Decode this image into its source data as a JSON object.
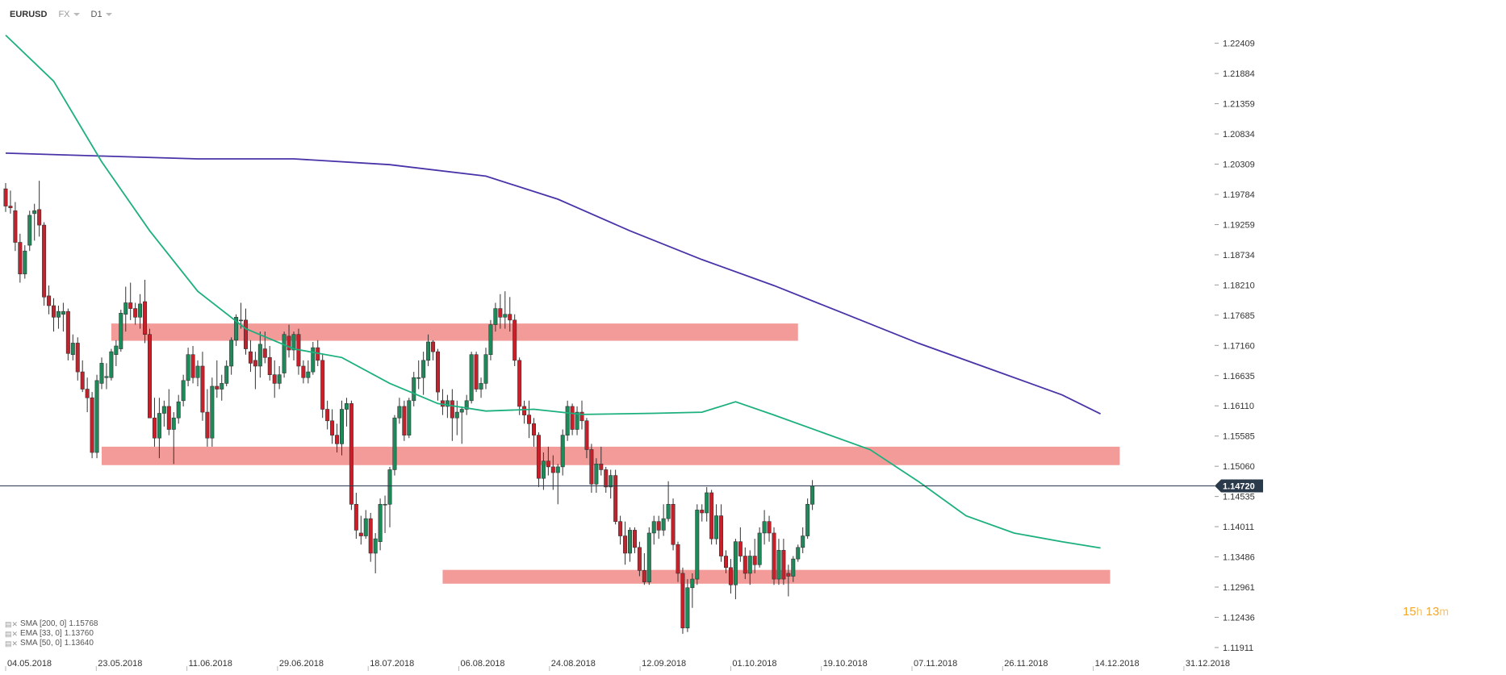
{
  "header": {
    "symbol": "EURUSD",
    "market": "FX",
    "timeframe": "D1"
  },
  "chart_data": {
    "type": "candlestick",
    "ylim": [
      1.117,
      1.2274
    ],
    "y_ticks": [
      "1.22409",
      "1.21884",
      "1.21359",
      "1.20834",
      "1.20309",
      "1.19784",
      "1.19259",
      "1.18734",
      "1.18210",
      "1.17685",
      "1.17160",
      "1.16635",
      "1.16110",
      "1.15585",
      "1.15060",
      "1.14535",
      "1.14011",
      "1.13486",
      "1.12961",
      "1.12436",
      "1.11911"
    ],
    "x_ticks": [
      "04.05.2018",
      "23.05.2018",
      "11.06.2018",
      "29.06.2018",
      "18.07.2018",
      "06.08.2018",
      "24.08.2018",
      "12.09.2018",
      "01.10.2018",
      "19.10.2018",
      "07.11.2018",
      "26.11.2018",
      "14.12.2018",
      "31.12.2018"
    ],
    "current_price": "1.14720",
    "colors": {
      "up": "#1e8a5a",
      "down": "#c8202a",
      "sma200": "#4a33a8",
      "sma50": "#1db07f",
      "zone": "#f08a86",
      "badge": "#2b3a4a"
    },
    "zones": [
      {
        "from": 22,
        "to": 165,
        "low": 1.1724,
        "high": 1.1754
      },
      {
        "from": 20,
        "to": 232,
        "low": 1.1508,
        "high": 1.154
      },
      {
        "from": 91,
        "to": 230,
        "low": 1.1302,
        "high": 1.1326
      }
    ],
    "candles": [
      [
        1.1988,
        1.1998,
        1.1948,
        1.1958
      ],
      [
        1.1958,
        1.1985,
        1.1945,
        1.1955
      ],
      [
        1.195,
        1.1965,
        1.188,
        1.1895
      ],
      [
        1.1895,
        1.191,
        1.1825,
        1.184
      ],
      [
        1.184,
        1.189,
        1.1832,
        1.188
      ],
      [
        1.189,
        1.195,
        1.188,
        1.1942
      ],
      [
        1.1945,
        1.1962,
        1.1898,
        1.195
      ],
      [
        1.1952,
        1.2002,
        1.1905,
        1.1925
      ],
      [
        1.1925,
        1.193,
        1.1785,
        1.18
      ],
      [
        1.1802,
        1.182,
        1.177,
        1.1785
      ],
      [
        1.1785,
        1.1798,
        1.174,
        1.1765
      ],
      [
        1.1765,
        1.1785,
        1.1745,
        1.1775
      ],
      [
        1.177,
        1.179,
        1.174,
        1.1775
      ],
      [
        1.1775,
        1.178,
        1.169,
        1.1702
      ],
      [
        1.17,
        1.1735,
        1.169,
        1.172
      ],
      [
        1.172,
        1.173,
        1.1655,
        1.167
      ],
      [
        1.167,
        1.169,
        1.1635,
        1.164
      ],
      [
        1.164,
        1.166,
        1.16,
        1.1625
      ],
      [
        1.1625,
        1.1635,
        1.152,
        1.153
      ],
      [
        1.153,
        1.1665,
        1.152,
        1.1655
      ],
      [
        1.165,
        1.1695,
        1.164,
        1.1685
      ],
      [
        1.166,
        1.1685,
        1.164,
        1.1662
      ],
      [
        1.166,
        1.171,
        1.1655,
        1.1705
      ],
      [
        1.17,
        1.1725,
        1.168,
        1.1715
      ],
      [
        1.171,
        1.1778,
        1.1705,
        1.1772
      ],
      [
        1.177,
        1.1818,
        1.174,
        1.179
      ],
      [
        1.179,
        1.1825,
        1.176,
        1.178
      ],
      [
        1.178,
        1.179,
        1.1752,
        1.1765
      ],
      [
        1.1765,
        1.1805,
        1.1745,
        1.1788
      ],
      [
        1.1792,
        1.183,
        1.172,
        1.1735
      ],
      [
        1.1735,
        1.1745,
        1.159,
        1.159
      ],
      [
        1.159,
        1.1625,
        1.154,
        1.1555
      ],
      [
        1.1555,
        1.1625,
        1.152,
        1.1598
      ],
      [
        1.1598,
        1.162,
        1.1575,
        1.161
      ],
      [
        1.161,
        1.164,
        1.156,
        1.157
      ],
      [
        1.157,
        1.16,
        1.151,
        1.159
      ],
      [
        1.159,
        1.163,
        1.158,
        1.1618
      ],
      [
        1.162,
        1.1665,
        1.161,
        1.1655
      ],
      [
        1.1655,
        1.1712,
        1.1645,
        1.17
      ],
      [
        1.17,
        1.1715,
        1.165,
        1.166
      ],
      [
        1.166,
        1.169,
        1.1645,
        1.168
      ],
      [
        1.168,
        1.1705,
        1.1585,
        1.16
      ],
      [
        1.16,
        1.164,
        1.154,
        1.1555
      ],
      [
        1.1555,
        1.166,
        1.154,
        1.1645
      ],
      [
        1.1645,
        1.169,
        1.1625,
        1.164
      ],
      [
        1.164,
        1.1665,
        1.162,
        1.165
      ],
      [
        1.165,
        1.169,
        1.1645,
        1.168
      ],
      [
        1.168,
        1.173,
        1.1665,
        1.1725
      ],
      [
        1.1725,
        1.177,
        1.1715,
        1.1765
      ],
      [
        1.176,
        1.179,
        1.1745,
        1.176
      ],
      [
        1.176,
        1.178,
        1.17,
        1.171
      ],
      [
        1.1705,
        1.1725,
        1.167,
        1.1685
      ],
      [
        1.169,
        1.1705,
        1.164,
        1.168
      ],
      [
        1.168,
        1.174,
        1.166,
        1.1718
      ],
      [
        1.171,
        1.174,
        1.1685,
        1.1695
      ],
      [
        1.1695,
        1.1715,
        1.1655,
        1.1665
      ],
      [
        1.1665,
        1.169,
        1.1625,
        1.165
      ],
      [
        1.165,
        1.168,
        1.164,
        1.1665
      ],
      [
        1.1668,
        1.174,
        1.166,
        1.1735
      ],
      [
        1.1732,
        1.1752,
        1.1695,
        1.1708
      ],
      [
        1.1708,
        1.174,
        1.169,
        1.1735
      ],
      [
        1.1735,
        1.1745,
        1.1665,
        1.168
      ],
      [
        1.168,
        1.169,
        1.165,
        1.166
      ],
      [
        1.166,
        1.169,
        1.165,
        1.167
      ],
      [
        1.167,
        1.1722,
        1.1665,
        1.1712
      ],
      [
        1.1712,
        1.1725,
        1.168,
        1.169
      ],
      [
        1.169,
        1.17,
        1.159,
        1.1605
      ],
      [
        1.1605,
        1.162,
        1.157,
        1.1585
      ],
      [
        1.1585,
        1.1605,
        1.1545,
        1.156
      ],
      [
        1.156,
        1.158,
        1.153,
        1.1545
      ],
      [
        1.1545,
        1.162,
        1.1525,
        1.1605
      ],
      [
        1.1605,
        1.1625,
        1.1575,
        1.1615
      ],
      [
        1.1615,
        1.162,
        1.143,
        1.144
      ],
      [
        1.144,
        1.146,
        1.138,
        1.1395
      ],
      [
        1.139,
        1.142,
        1.137,
        1.1385
      ],
      [
        1.1385,
        1.143,
        1.138,
        1.1415
      ],
      [
        1.1415,
        1.1425,
        1.134,
        1.1355
      ],
      [
        1.1355,
        1.139,
        1.132,
        1.138
      ],
      [
        1.1375,
        1.145,
        1.136,
        1.144
      ],
      [
        1.144,
        1.1455,
        1.139,
        1.144
      ],
      [
        1.144,
        1.1505,
        1.14,
        1.15
      ],
      [
        1.15,
        1.1595,
        1.149,
        1.159
      ],
      [
        1.159,
        1.1625,
        1.158,
        1.161
      ],
      [
        1.161,
        1.162,
        1.155,
        1.156
      ],
      [
        1.156,
        1.1625,
        1.1555,
        1.162
      ],
      [
        1.162,
        1.167,
        1.161,
        1.166
      ],
      [
        1.166,
        1.169,
        1.164,
        1.166
      ],
      [
        1.166,
        1.1705,
        1.163,
        1.169
      ],
      [
        1.169,
        1.1735,
        1.168,
        1.1722
      ],
      [
        1.1722,
        1.1725,
        1.169,
        1.1705
      ],
      [
        1.1705,
        1.171,
        1.162,
        1.1635
      ],
      [
        1.162,
        1.164,
        1.1595,
        1.161
      ],
      [
        1.161,
        1.163,
        1.159,
        1.162
      ],
      [
        1.162,
        1.164,
        1.155,
        1.159
      ],
      [
        1.159,
        1.162,
        1.156,
        1.16
      ],
      [
        1.16,
        1.161,
        1.1545,
        1.1605
      ],
      [
        1.1605,
        1.163,
        1.1595,
        1.162
      ],
      [
        1.162,
        1.1705,
        1.1615,
        1.17
      ],
      [
        1.17,
        1.1705,
        1.1635,
        1.164
      ],
      [
        1.164,
        1.166,
        1.1625,
        1.165
      ],
      [
        1.165,
        1.1712,
        1.164,
        1.17
      ],
      [
        1.17,
        1.176,
        1.169,
        1.1752
      ],
      [
        1.1752,
        1.179,
        1.174,
        1.178
      ],
      [
        1.178,
        1.1805,
        1.1745,
        1.1765
      ],
      [
        1.1765,
        1.181,
        1.1745,
        1.177
      ],
      [
        1.177,
        1.18,
        1.174,
        1.176
      ],
      [
        1.176,
        1.177,
        1.168,
        1.169
      ],
      [
        1.169,
        1.1695,
        1.1595,
        1.161
      ],
      [
        1.161,
        1.162,
        1.158,
        1.1595
      ],
      [
        1.1595,
        1.162,
        1.1555,
        1.158
      ],
      [
        1.158,
        1.159,
        1.154,
        1.156
      ],
      [
        1.156,
        1.1565,
        1.147,
        1.1485
      ],
      [
        1.1485,
        1.153,
        1.1465,
        1.1515
      ],
      [
        1.1515,
        1.154,
        1.149,
        1.1505
      ],
      [
        1.1505,
        1.1525,
        1.1465,
        1.1495
      ],
      [
        1.1495,
        1.151,
        1.144,
        1.1505
      ],
      [
        1.1505,
        1.157,
        1.149,
        1.156
      ],
      [
        1.156,
        1.162,
        1.155,
        1.161
      ],
      [
        1.161,
        1.1615,
        1.156,
        1.157
      ],
      [
        1.157,
        1.161,
        1.156,
        1.16
      ],
      [
        1.16,
        1.162,
        1.157,
        1.1585
      ],
      [
        1.1585,
        1.159,
        1.152,
        1.1535
      ],
      [
        1.1535,
        1.1545,
        1.146,
        1.1475
      ],
      [
        1.1475,
        1.152,
        1.146,
        1.151
      ],
      [
        1.151,
        1.154,
        1.149,
        1.15
      ],
      [
        1.15,
        1.1505,
        1.146,
        1.147
      ],
      [
        1.147,
        1.15,
        1.145,
        1.149
      ],
      [
        1.149,
        1.15,
        1.1405,
        1.141
      ],
      [
        1.141,
        1.142,
        1.137,
        1.1385
      ],
      [
        1.1385,
        1.141,
        1.1335,
        1.1355
      ],
      [
        1.1355,
        1.14,
        1.134,
        1.1395
      ],
      [
        1.1395,
        1.14,
        1.1355,
        1.1365
      ],
      [
        1.1365,
        1.1375,
        1.1315,
        1.1325
      ],
      [
        1.1325,
        1.1355,
        1.13,
        1.1305
      ],
      [
        1.1305,
        1.14,
        1.13,
        1.139
      ],
      [
        1.139,
        1.142,
        1.137,
        1.141
      ],
      [
        1.141,
        1.142,
        1.138,
        1.1395
      ],
      [
        1.1395,
        1.144,
        1.1385,
        1.1415
      ],
      [
        1.1415,
        1.148,
        1.141,
        1.144
      ],
      [
        1.144,
        1.145,
        1.136,
        1.137
      ],
      [
        1.137,
        1.1375,
        1.1305,
        1.132
      ],
      [
        1.132,
        1.133,
        1.1215,
        1.1225
      ],
      [
        1.1225,
        1.131,
        1.1218,
        1.1295
      ],
      [
        1.1295,
        1.132,
        1.126,
        1.131
      ],
      [
        1.131,
        1.144,
        1.13,
        1.143
      ],
      [
        1.143,
        1.144,
        1.141,
        1.1425
      ],
      [
        1.1425,
        1.147,
        1.141,
        1.146
      ],
      [
        1.146,
        1.1465,
        1.137,
        1.138
      ],
      [
        1.138,
        1.144,
        1.137,
        1.142
      ],
      [
        1.142,
        1.144,
        1.134,
        1.135
      ],
      [
        1.135,
        1.136,
        1.132,
        1.133
      ],
      [
        1.133,
        1.1345,
        1.1285,
        1.13
      ],
      [
        1.13,
        1.138,
        1.1275,
        1.1375
      ],
      [
        1.1375,
        1.14,
        1.134,
        1.135
      ],
      [
        1.135,
        1.1365,
        1.131,
        1.132
      ],
      [
        1.132,
        1.136,
        1.13,
        1.135
      ],
      [
        1.135,
        1.138,
        1.132,
        1.1335
      ],
      [
        1.1335,
        1.14,
        1.133,
        1.139
      ],
      [
        1.139,
        1.143,
        1.137,
        1.141
      ],
      [
        1.141,
        1.142,
        1.1375,
        1.139
      ],
      [
        1.139,
        1.14,
        1.13,
        1.131
      ],
      [
        1.131,
        1.138,
        1.13,
        1.136
      ],
      [
        1.136,
        1.138,
        1.13,
        1.131
      ],
      [
        1.132,
        1.1335,
        1.128,
        1.1315
      ],
      [
        1.1315,
        1.135,
        1.1305,
        1.1345
      ],
      [
        1.1345,
        1.137,
        1.134,
        1.1365
      ],
      [
        1.1365,
        1.14,
        1.1355,
        1.1385
      ],
      [
        1.1385,
        1.145,
        1.138,
        1.144
      ],
      [
        1.144,
        1.1482,
        1.143,
        1.1472
      ]
    ],
    "sma200": [
      [
        0,
        1.205
      ],
      [
        20,
        1.2045
      ],
      [
        40,
        1.204
      ],
      [
        60,
        1.204
      ],
      [
        80,
        1.203
      ],
      [
        100,
        1.201
      ],
      [
        115,
        1.197
      ],
      [
        130,
        1.1915
      ],
      [
        145,
        1.1865
      ],
      [
        160,
        1.182
      ],
      [
        175,
        1.177
      ],
      [
        190,
        1.172
      ],
      [
        205,
        1.1675
      ],
      [
        220,
        1.163
      ],
      [
        228,
        1.1597
      ]
    ],
    "sma50": [
      [
        0,
        1.2255
      ],
      [
        10,
        1.2175
      ],
      [
        20,
        1.2035
      ],
      [
        30,
        1.1915
      ],
      [
        40,
        1.181
      ],
      [
        50,
        1.1745
      ],
      [
        60,
        1.171
      ],
      [
        70,
        1.1695
      ],
      [
        80,
        1.165
      ],
      [
        90,
        1.1615
      ],
      [
        100,
        1.1602
      ],
      [
        110,
        1.1605
      ],
      [
        120,
        1.1596
      ],
      [
        135,
        1.1598
      ],
      [
        145,
        1.16
      ],
      [
        152,
        1.1618
      ],
      [
        160,
        1.1595
      ],
      [
        170,
        1.1565
      ],
      [
        180,
        1.1535
      ],
      [
        190,
        1.148
      ],
      [
        200,
        1.142
      ],
      [
        210,
        1.139
      ],
      [
        220,
        1.1375
      ],
      [
        228,
        1.1364
      ]
    ],
    "legend": [
      {
        "label": "SMA [200, 0]",
        "value": "1.15768"
      },
      {
        "label": "EMA [33, 0]",
        "value": "1.13760"
      },
      {
        "label": "SMA [50, 0]",
        "value": "1.13640"
      }
    ]
  },
  "timer": {
    "hours": "15",
    "h_unit": "h",
    "minutes": "13",
    "m_unit": "m"
  }
}
